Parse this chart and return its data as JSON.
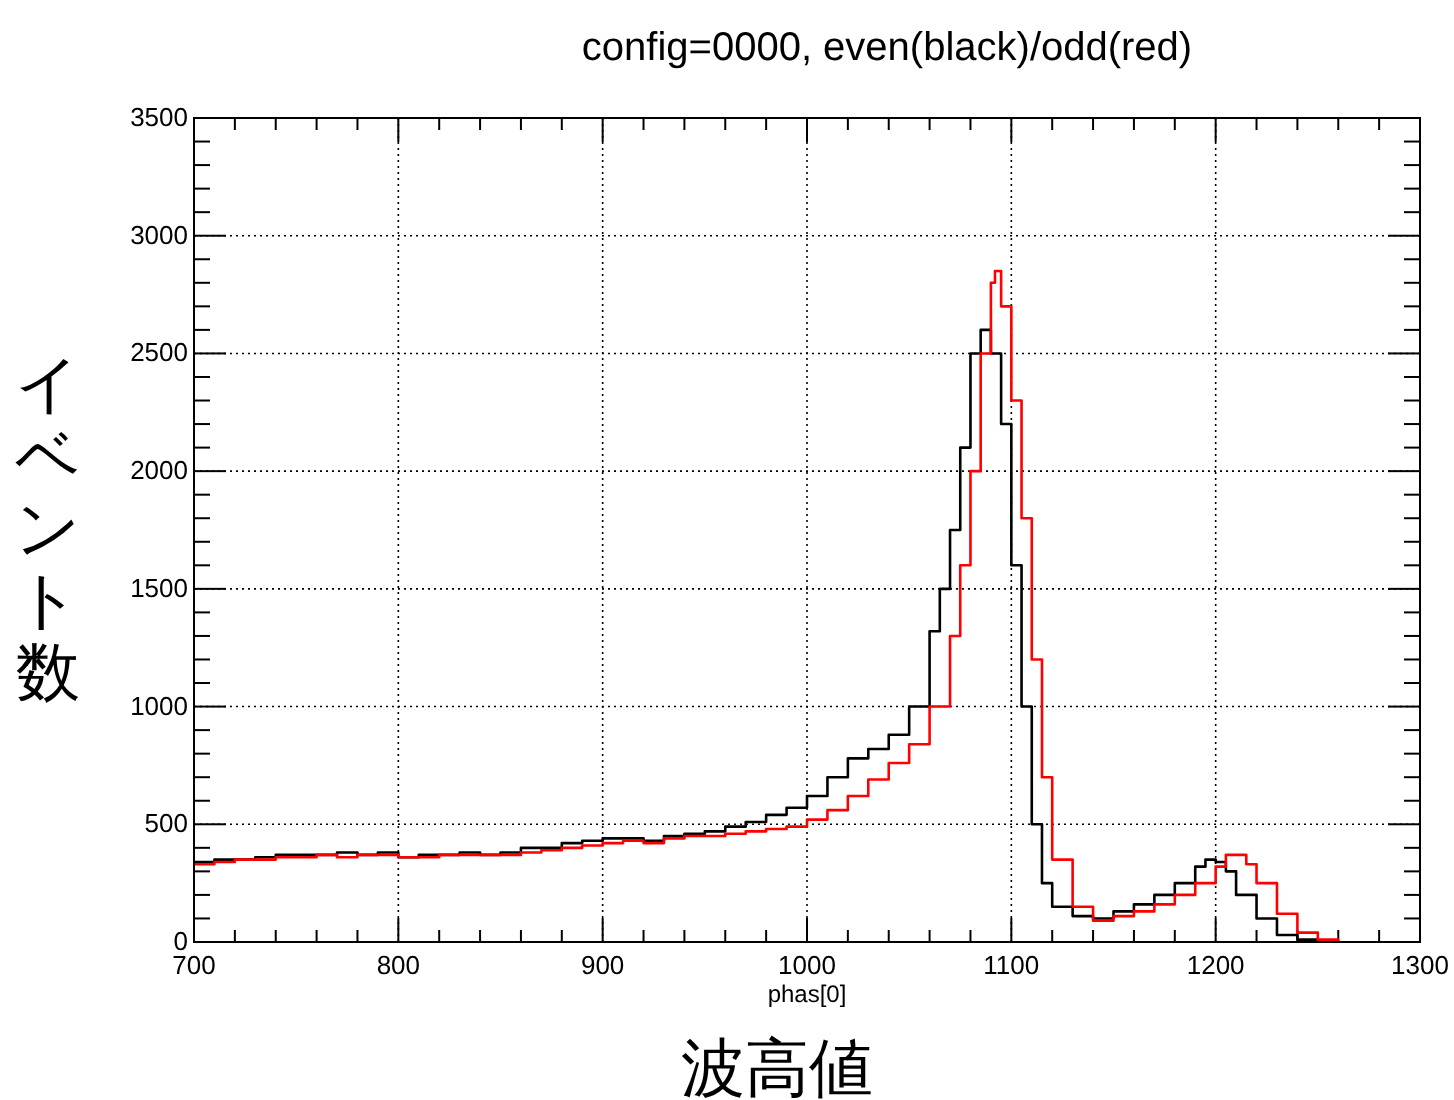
{
  "chart_data": {
    "type": "step",
    "title": "config=0000, even(black)/odd(red)",
    "xlabel": "phas[0]",
    "ylabel": "イベント数",
    "annotations": [
      "波高値"
    ],
    "xlim": [
      700,
      1300
    ],
    "xticks": [
      700,
      800,
      900,
      1000,
      1100,
      1200,
      1300
    ],
    "ylim": [
      0,
      3500
    ],
    "yticks": [
      0,
      500,
      1000,
      1500,
      2000,
      2500,
      3000,
      3500
    ],
    "grid": true,
    "line_style": "solid",
    "marker": "none",
    "series": [
      {
        "color": "#000000",
        "x": [
          700,
          710,
          720,
          730,
          740,
          750,
          760,
          770,
          780,
          790,
          800,
          810,
          820,
          830,
          840,
          850,
          860,
          870,
          880,
          890,
          900,
          910,
          920,
          930,
          940,
          950,
          960,
          970,
          980,
          990,
          1000,
          1010,
          1020,
          1030,
          1040,
          1050,
          1060,
          1065,
          1070,
          1075,
          1080,
          1085,
          1090,
          1095,
          1100,
          1105,
          1110,
          1115,
          1120,
          1130,
          1140,
          1150,
          1160,
          1170,
          1180,
          1190,
          1195,
          1200,
          1205,
          1210,
          1220,
          1230,
          1240,
          1250
        ],
        "values": [
          340,
          350,
          350,
          360,
          370,
          370,
          370,
          380,
          370,
          380,
          360,
          370,
          370,
          380,
          370,
          380,
          400,
          400,
          420,
          430,
          440,
          440,
          430,
          450,
          460,
          470,
          490,
          510,
          540,
          570,
          620,
          700,
          780,
          820,
          880,
          1000,
          1320,
          1500,
          1750,
          2100,
          2500,
          2600,
          2500,
          2200,
          1600,
          1000,
          500,
          250,
          150,
          110,
          100,
          130,
          160,
          200,
          250,
          320,
          350,
          340,
          300,
          200,
          100,
          30,
          10,
          0
        ]
      },
      {
        "color": "#ff0000",
        "x": [
          700,
          710,
          720,
          730,
          740,
          750,
          760,
          770,
          780,
          790,
          800,
          810,
          820,
          830,
          840,
          850,
          860,
          870,
          880,
          890,
          900,
          910,
          920,
          930,
          940,
          950,
          960,
          970,
          980,
          990,
          1000,
          1010,
          1020,
          1030,
          1040,
          1050,
          1060,
          1070,
          1075,
          1080,
          1085,
          1090,
          1092,
          1095,
          1100,
          1105,
          1110,
          1115,
          1120,
          1130,
          1140,
          1150,
          1160,
          1170,
          1180,
          1190,
          1200,
          1205,
          1210,
          1215,
          1220,
          1230,
          1240,
          1250,
          1260
        ],
        "values": [
          330,
          340,
          350,
          350,
          360,
          360,
          370,
          360,
          370,
          370,
          360,
          360,
          370,
          370,
          370,
          370,
          380,
          390,
          400,
          410,
          420,
          430,
          420,
          440,
          450,
          450,
          460,
          470,
          480,
          490,
          520,
          560,
          620,
          690,
          760,
          840,
          1000,
          1300,
          1600,
          2000,
          2500,
          2800,
          2850,
          2700,
          2300,
          1800,
          1200,
          700,
          350,
          150,
          90,
          110,
          130,
          160,
          200,
          250,
          320,
          370,
          370,
          330,
          250,
          120,
          40,
          10,
          0
        ]
      }
    ]
  }
}
